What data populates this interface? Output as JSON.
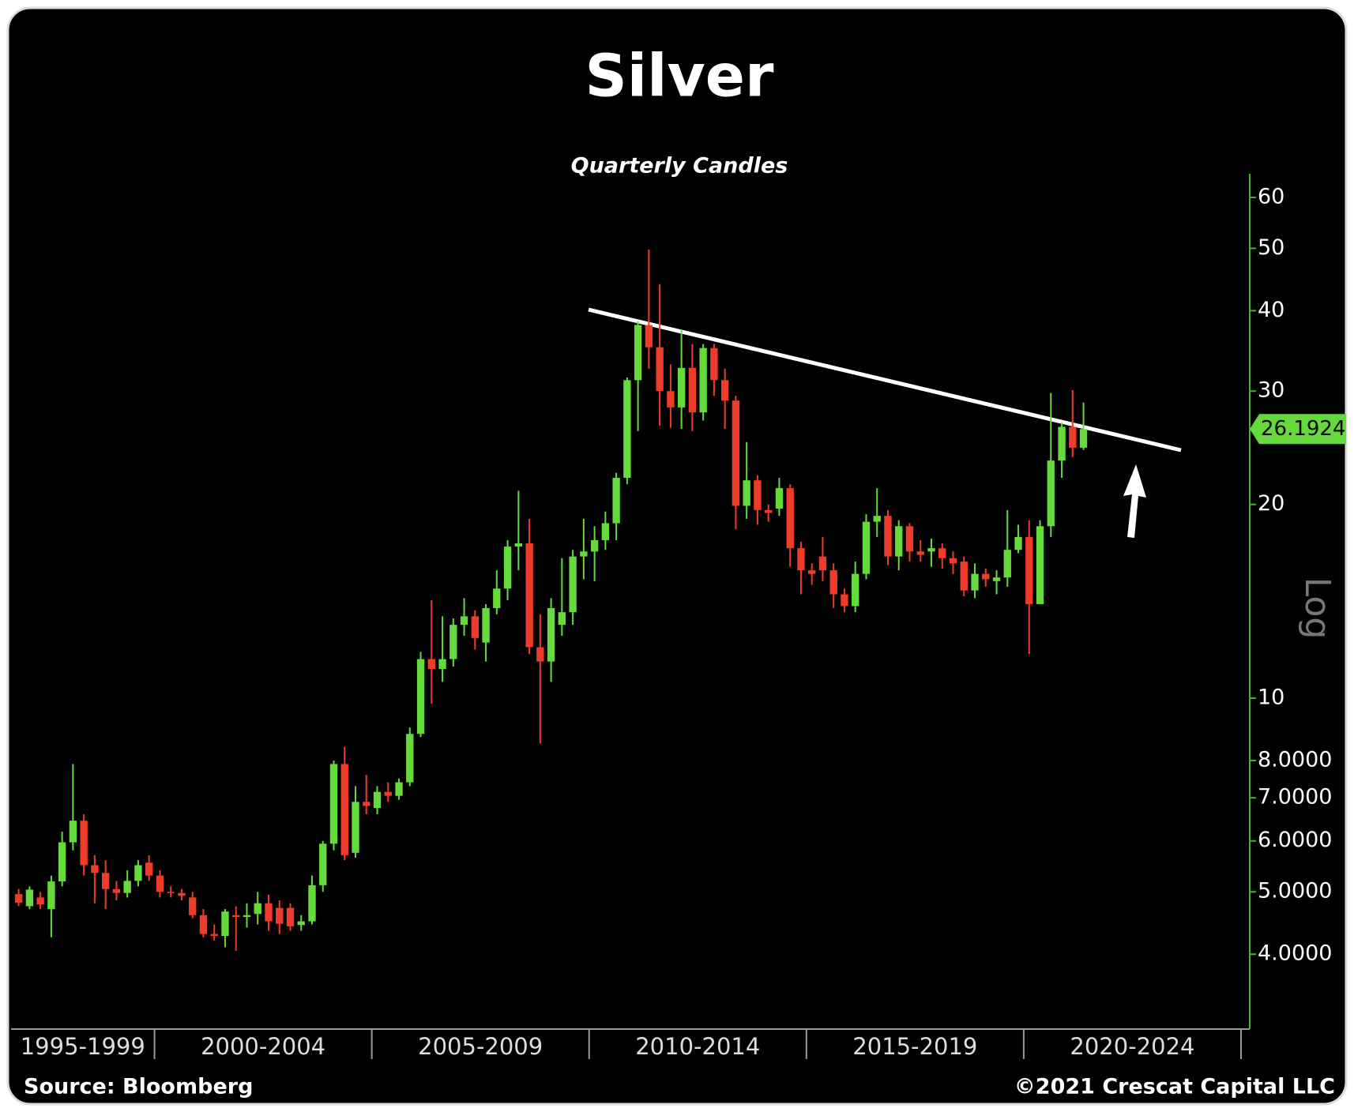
{
  "chart_data": {
    "type": "candlestick",
    "title": "Silver",
    "subtitle": "Quarterly Candles",
    "x": [
      1996.875,
      1997.125,
      1997.375,
      1997.625,
      1997.875,
      1998.125,
      1998.375,
      1998.625,
      1998.875,
      1999.125,
      1999.375,
      1999.625,
      1999.875,
      2000.125,
      2000.375,
      2000.625,
      2000.875,
      2001.125,
      2001.375,
      2001.625,
      2001.875,
      2002.125,
      2002.375,
      2002.625,
      2002.875,
      2003.125,
      2003.375,
      2003.625,
      2003.875,
      2004.125,
      2004.375,
      2004.625,
      2004.875,
      2005.125,
      2005.375,
      2005.625,
      2005.875,
      2006.125,
      2006.375,
      2006.625,
      2006.875,
      2007.125,
      2007.375,
      2007.625,
      2007.875,
      2008.125,
      2008.375,
      2008.625,
      2008.875,
      2009.125,
      2009.375,
      2009.625,
      2009.875,
      2010.125,
      2010.375,
      2010.625,
      2010.875,
      2011.125,
      2011.375,
      2011.625,
      2011.875,
      2012.125,
      2012.375,
      2012.625,
      2012.875,
      2013.125,
      2013.375,
      2013.625,
      2013.875,
      2014.125,
      2014.375,
      2014.625,
      2014.875,
      2015.125,
      2015.375,
      2015.625,
      2015.875,
      2016.125,
      2016.375,
      2016.625,
      2016.875,
      2017.125,
      2017.375,
      2017.625,
      2017.875,
      2018.125,
      2018.375,
      2018.625,
      2018.875,
      2019.125,
      2019.375,
      2019.625,
      2019.875,
      2020.125,
      2020.375,
      2020.625,
      2020.875,
      2021.125,
      2021.375
    ],
    "open": [
      4.96,
      4.75,
      4.9,
      4.7,
      5.19,
      5.97,
      6.45,
      5.5,
      5.35,
      5.05,
      4.98,
      5.2,
      5.55,
      5.3,
      5.0,
      4.98,
      4.9,
      4.6,
      4.3,
      4.27,
      4.6,
      4.57,
      4.62,
      4.8,
      4.72,
      4.72,
      4.44,
      4.5,
      5.12,
      5.94,
      7.9,
      5.75,
      6.9,
      6.75,
      7.15,
      7.05,
      7.4,
      8.8,
      11.5,
      11.1,
      11.5,
      13.0,
      13.4,
      12.2,
      13.8,
      14.8,
      17.2,
      17.4,
      12.0,
      11.4,
      13.0,
      13.6,
      16.6,
      16.9,
      17.6,
      18.7,
      22.0,
      31.2,
      38.0,
      35.1,
      30.0,
      28.3,
      32.6,
      27.8,
      35.0,
      31.2,
      29.0,
      19.9,
      21.8,
      19.6,
      19.7,
      21.2,
      17.1,
      15.8,
      16.6,
      15.8,
      14.5,
      13.9,
      15.6,
      18.8,
      19.2,
      16.6,
      18.5,
      16.9,
      16.9,
      17.1,
      16.5,
      16.3,
      14.7,
      15.6,
      15.2,
      15.4,
      17.0,
      17.8,
      14.0,
      18.5,
      23.4,
      26.4,
      24.5
    ],
    "high": [
      5.05,
      5.1,
      5.0,
      5.3,
      6.2,
      7.9,
      6.6,
      5.7,
      5.6,
      5.2,
      5.4,
      5.6,
      5.7,
      5.4,
      5.1,
      5.05,
      5.0,
      4.7,
      4.45,
      4.7,
      4.75,
      4.8,
      5.0,
      4.95,
      4.85,
      4.8,
      4.6,
      5.3,
      6.0,
      8.0,
      8.4,
      7.3,
      7.6,
      7.3,
      7.4,
      7.5,
      9.0,
      11.8,
      14.2,
      13.4,
      13.3,
      14.3,
      13.7,
      14.0,
      15.8,
      17.6,
      21.0,
      19.0,
      13.5,
      14.3,
      16.5,
      17.0,
      19.0,
      18.5,
      19.5,
      22.4,
      31.5,
      38.5,
      49.8,
      44.0,
      33.0,
      37.4,
      35.5,
      35.5,
      35.5,
      32.5,
      29.5,
      25.0,
      22.2,
      20.0,
      22.0,
      21.5,
      17.5,
      16.2,
      17.8,
      16.2,
      14.8,
      16.3,
      19.3,
      21.2,
      19.6,
      18.9,
      18.7,
      17.6,
      17.7,
      17.4,
      16.9,
      16.6,
      16.2,
      15.9,
      15.8,
      19.6,
      18.6,
      18.9,
      18.9,
      29.8,
      26.8,
      30.1,
      28.8
    ],
    "low": [
      4.75,
      4.7,
      4.7,
      4.25,
      5.1,
      5.8,
      5.3,
      4.8,
      4.7,
      4.85,
      4.9,
      5.1,
      5.2,
      4.9,
      4.9,
      4.85,
      4.55,
      4.25,
      4.2,
      4.1,
      4.05,
      4.4,
      4.45,
      4.35,
      4.3,
      4.35,
      4.35,
      4.45,
      5.0,
      5.8,
      5.6,
      5.65,
      6.6,
      6.6,
      6.9,
      6.95,
      7.3,
      8.7,
      9.8,
      10.6,
      11.2,
      12.5,
      11.9,
      11.4,
      13.5,
      14.2,
      15.8,
      11.7,
      8.5,
      10.6,
      12.5,
      13.0,
      15.3,
      15.2,
      17.0,
      17.6,
      21.5,
      26.0,
      32.5,
      26.5,
      26.3,
      26.2,
      26.0,
      27.0,
      29.5,
      26.2,
      18.3,
      19.0,
      18.6,
      18.8,
      19.2,
      16.0,
      14.5,
      15.0,
      15.2,
      13.8,
      13.6,
      13.6,
      15.3,
      17.8,
      16.1,
      15.8,
      16.3,
      16.3,
      16.0,
      15.9,
      15.6,
      14.4,
      14.3,
      14.9,
      14.5,
      14.9,
      16.8,
      11.7,
      14.0,
      17.8,
      22.0,
      23.7,
      24.3
    ],
    "close": [
      4.81,
      5.04,
      4.78,
      5.19,
      5.97,
      6.45,
      5.5,
      5.35,
      5.05,
      4.98,
      5.2,
      5.5,
      5.3,
      5.0,
      4.98,
      4.93,
      4.6,
      4.3,
      4.27,
      4.66,
      4.57,
      4.6,
      4.8,
      4.5,
      4.46,
      4.42,
      4.5,
      5.12,
      5.94,
      7.9,
      5.7,
      6.9,
      6.8,
      7.15,
      7.05,
      7.4,
      8.8,
      11.5,
      11.1,
      11.5,
      13.0,
      13.4,
      12.4,
      13.8,
      14.8,
      17.2,
      17.4,
      12.0,
      11.4,
      13.8,
      13.6,
      16.6,
      16.9,
      17.6,
      18.7,
      22.0,
      31.2,
      38.0,
      35.1,
      30.0,
      28.3,
      32.6,
      27.8,
      35.0,
      31.2,
      29.0,
      19.9,
      21.8,
      19.6,
      19.4,
      21.2,
      17.1,
      15.8,
      15.6,
      15.8,
      14.5,
      13.9,
      15.6,
      18.8,
      19.2,
      16.6,
      18.5,
      16.9,
      16.7,
      17.1,
      16.5,
      16.2,
      14.7,
      15.6,
      15.3,
      15.4,
      17.0,
      17.8,
      14.0,
      18.5,
      23.4,
      26.4,
      24.5,
      26.19
    ],
    "up_color": "#66d93c",
    "down_color": "#ee3b2b",
    "xlim": [
      1996.7,
      2025.2
    ],
    "xticks": [
      2000,
      2005,
      2010,
      2015,
      2020,
      2025
    ],
    "x_periods": [
      "1995-1999",
      "2000-2004",
      "2005-2009",
      "2010-2014",
      "2015-2019",
      "2020-2024"
    ],
    "ylim": [
      3.06,
      65.3
    ],
    "log_scale": true,
    "y_axis_label": "Log",
    "yticks": [
      {
        "value": 4,
        "label": "4.0000"
      },
      {
        "value": 5,
        "label": "5.0000"
      },
      {
        "value": 6,
        "label": "6.0000"
      },
      {
        "value": 7,
        "label": "7.0000"
      },
      {
        "value": 8,
        "label": "8.0000"
      },
      10,
      20,
      30,
      40,
      50,
      60
    ],
    "last_price": 26.1924,
    "source": "Source: Bloomberg",
    "copyright": "©2021 Crescat Capital LLC"
  }
}
